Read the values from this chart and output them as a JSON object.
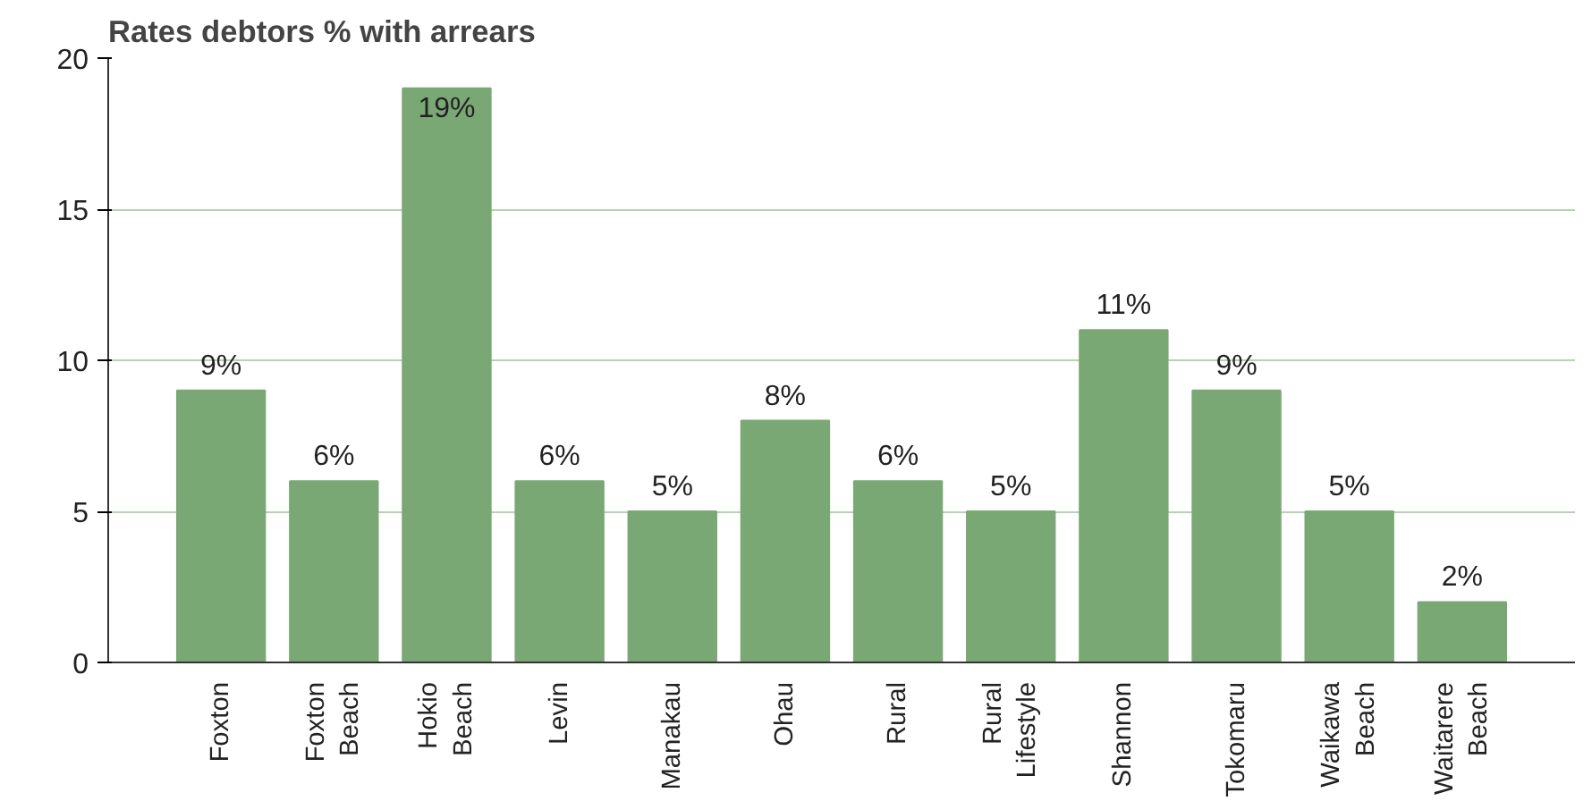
{
  "chart_data": {
    "type": "bar",
    "title": "Rates debtors % with arrears",
    "categories": [
      "Foxton",
      "Foxton\nBeach",
      "Hokio\nBeach",
      "Levin",
      "Manakau",
      "Ohau",
      "Rural",
      "Rural\nLifestyle",
      "Shannon",
      "Tokomaru",
      "Waikawa\nBeach",
      "Waitarere\nBeach"
    ],
    "values": [
      9,
      6,
      19,
      6,
      5,
      8,
      6,
      5,
      11,
      9,
      5,
      2
    ],
    "value_labels": [
      "9%",
      "6%",
      "19%",
      "6%",
      "5%",
      "8%",
      "6%",
      "5%",
      "11%",
      "9%",
      "5%",
      "2%"
    ],
    "color": "#7aa874",
    "ylim": [
      0,
      20
    ],
    "yticks": [
      0,
      5,
      10,
      15,
      20
    ],
    "grid": "y"
  }
}
